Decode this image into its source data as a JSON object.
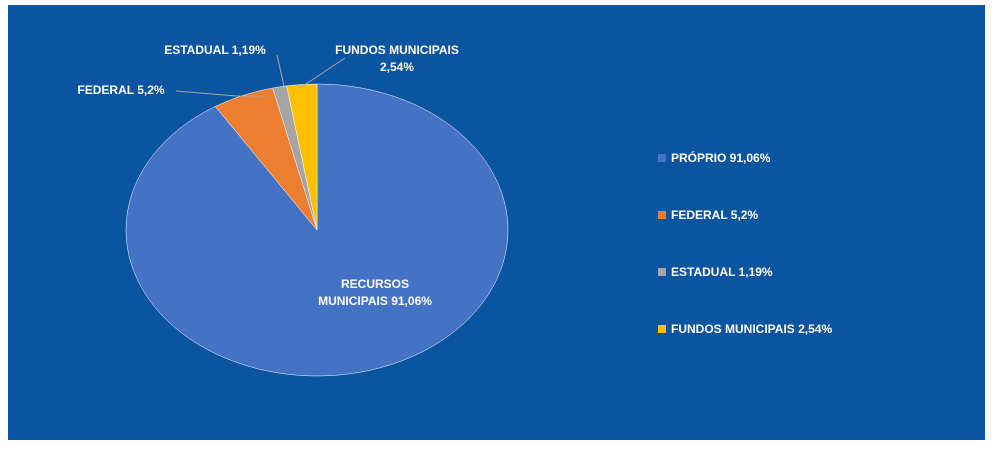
{
  "chart_data": {
    "type": "pie",
    "categories": [
      "PRÓPRIO 91,06%",
      "FEDERAL 5,2%",
      "ESTADUAL 1,19%",
      "FUNDOS MUNICIPAIS 2,54%"
    ],
    "values": [
      91.06,
      5.2,
      1.19,
      2.54
    ],
    "value_labels": [
      "RECURSOS MUNICIPAIS 91,06%",
      "FEDERAL 5,2%",
      "ESTADUAL 1,19%",
      "FUNDOS MUNICIPAIS 2,54%"
    ],
    "colors": [
      "#4472c4",
      "#ed7d31",
      "#a5a5a5",
      "#ffc000"
    ],
    "legend": "right"
  }
}
